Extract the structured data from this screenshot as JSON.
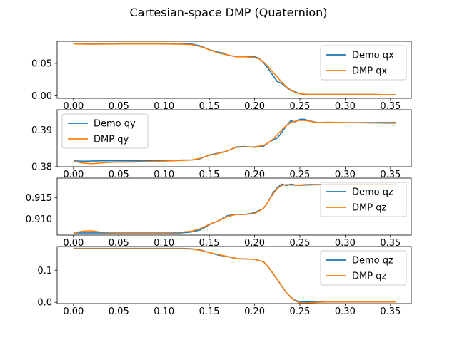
{
  "figure": {
    "title": "Cartesian-space DMP (Quaternion)"
  },
  "colors": {
    "demo": "#1f77b4",
    "dmp": "#ff7f0e"
  },
  "chart_data": [
    {
      "type": "line",
      "xlim": [
        -0.018,
        0.373
      ],
      "ylim": [
        -0.004,
        0.084
      ],
      "xticks": [
        "0.00",
        "0.05",
        "0.10",
        "0.15",
        "0.20",
        "0.25",
        "0.30",
        "0.35"
      ],
      "yticks": [
        {
          "v": 0.0,
          "label": "0.00"
        },
        {
          "v": 0.05,
          "label": "0.05"
        }
      ],
      "legend": "right",
      "series": [
        {
          "name": "Demo qx",
          "color": "demo",
          "x": [
            0,
            0.02,
            0.05,
            0.08,
            0.1,
            0.12,
            0.13,
            0.14,
            0.15,
            0.16,
            0.165,
            0.17,
            0.18,
            0.19,
            0.2,
            0.205,
            0.21,
            0.215,
            0.22,
            0.225,
            0.23,
            0.235,
            0.24,
            0.245,
            0.25,
            0.255,
            0.26,
            0.28,
            0.3,
            0.33,
            0.356
          ],
          "y": [
            0.081,
            0.0805,
            0.081,
            0.081,
            0.081,
            0.0805,
            0.08,
            0.077,
            0.071,
            0.067,
            0.066,
            0.063,
            0.06,
            0.0605,
            0.06,
            0.058,
            0.051,
            0.042,
            0.032,
            0.022,
            0.019,
            0.013,
            0.008,
            0.006,
            0.003,
            0.002,
            0.002,
            0.002,
            0.002,
            0.002,
            0.0015
          ]
        },
        {
          "name": "DMP qx",
          "color": "dmp",
          "x": [
            0,
            0.02,
            0.05,
            0.08,
            0.1,
            0.12,
            0.13,
            0.14,
            0.15,
            0.16,
            0.17,
            0.18,
            0.19,
            0.2,
            0.205,
            0.21,
            0.215,
            0.22,
            0.225,
            0.23,
            0.235,
            0.24,
            0.245,
            0.25,
            0.255,
            0.26,
            0.28,
            0.3,
            0.33,
            0.356
          ],
          "y": [
            0.08,
            0.0795,
            0.08,
            0.08,
            0.08,
            0.0795,
            0.079,
            0.076,
            0.071,
            0.066,
            0.063,
            0.06,
            0.06,
            0.059,
            0.057,
            0.052,
            0.045,
            0.037,
            0.029,
            0.021,
            0.014,
            0.009,
            0.005,
            0.003,
            0.0025,
            0.002,
            0.002,
            0.002,
            0.002,
            0.0015
          ]
        }
      ]
    },
    {
      "type": "line",
      "xlim": [
        -0.018,
        0.373
      ],
      "ylim": [
        0.38,
        0.3955
      ],
      "xticks": [
        "0.00",
        "0.05",
        "0.10",
        "0.15",
        "0.20",
        "0.25",
        "0.30",
        "0.35"
      ],
      "yticks": [
        {
          "v": 0.38,
          "label": "0.38"
        },
        {
          "v": 0.39,
          "label": "0.39"
        }
      ],
      "legend": "left",
      "series": [
        {
          "name": "Demo qy",
          "color": "demo",
          "x": [
            0,
            0.01,
            0.03,
            0.06,
            0.09,
            0.12,
            0.13,
            0.14,
            0.15,
            0.16,
            0.17,
            0.18,
            0.19,
            0.2,
            0.21,
            0.215,
            0.22,
            0.225,
            0.23,
            0.235,
            0.24,
            0.245,
            0.25,
            0.255,
            0.26,
            0.27,
            0.28,
            0.3,
            0.33,
            0.356
          ],
          "y": [
            0.3816,
            0.3815,
            0.3816,
            0.3816,
            0.3816,
            0.3818,
            0.3818,
            0.3822,
            0.3832,
            0.3837,
            0.3843,
            0.3854,
            0.3855,
            0.3853,
            0.3856,
            0.3865,
            0.3872,
            0.3878,
            0.3893,
            0.3911,
            0.3925,
            0.3922,
            0.3929,
            0.3929,
            0.3925,
            0.392,
            0.392,
            0.392,
            0.392,
            0.392
          ]
        },
        {
          "name": "DMP qy",
          "color": "dmp",
          "x": [
            0,
            0.01,
            0.02,
            0.04,
            0.07,
            0.1,
            0.12,
            0.13,
            0.14,
            0.15,
            0.16,
            0.17,
            0.18,
            0.19,
            0.2,
            0.21,
            0.215,
            0.22,
            0.225,
            0.23,
            0.235,
            0.24,
            0.245,
            0.25,
            0.255,
            0.26,
            0.27,
            0.28,
            0.3,
            0.33,
            0.356
          ],
          "y": [
            0.3815,
            0.381,
            0.3808,
            0.3812,
            0.3813,
            0.3815,
            0.3817,
            0.3818,
            0.3823,
            0.3831,
            0.3836,
            0.3843,
            0.3853,
            0.3854,
            0.3854,
            0.3858,
            0.3865,
            0.3874,
            0.3887,
            0.39,
            0.3912,
            0.392,
            0.3924,
            0.3926,
            0.3926,
            0.3924,
            0.392,
            0.3921,
            0.392,
            0.3919,
            0.3918
          ]
        }
      ]
    },
    {
      "type": "line",
      "xlim": [
        -0.018,
        0.373
      ],
      "ylim": [
        0.9063,
        0.9195
      ],
      "xticks": [
        "0.00",
        "0.05",
        "0.10",
        "0.15",
        "0.20",
        "0.25",
        "0.30",
        "0.35"
      ],
      "yticks": [
        {
          "v": 0.91,
          "label": "0.910"
        },
        {
          "v": 0.915,
          "label": "0.915"
        }
      ],
      "legend": "right",
      "series": [
        {
          "name": "Demo qz",
          "color": "demo",
          "x": [
            0,
            0.02,
            0.05,
            0.08,
            0.1,
            0.118,
            0.13,
            0.14,
            0.15,
            0.16,
            0.17,
            0.18,
            0.19,
            0.2,
            0.21,
            0.215,
            0.22,
            0.225,
            0.23,
            0.235,
            0.24,
            0.245,
            0.25,
            0.26,
            0.27,
            0.28,
            0.3,
            0.33,
            0.356
          ],
          "y": [
            0.9068,
            0.9068,
            0.9068,
            0.9068,
            0.9068,
            0.9068,
            0.907,
            0.9075,
            0.9087,
            0.9096,
            0.9108,
            0.9111,
            0.9111,
            0.9115,
            0.9125,
            0.914,
            0.916,
            0.9173,
            0.9181,
            0.9178,
            0.9181,
            0.9179,
            0.9179,
            0.918,
            0.918,
            0.9181,
            0.9181,
            0.9181,
            0.9181
          ]
        },
        {
          "name": "DMP qz",
          "color": "dmp",
          "x": [
            0,
            0.01,
            0.02,
            0.03,
            0.05,
            0.08,
            0.1,
            0.12,
            0.13,
            0.14,
            0.15,
            0.16,
            0.17,
            0.18,
            0.19,
            0.2,
            0.21,
            0.215,
            0.22,
            0.225,
            0.23,
            0.235,
            0.24,
            0.25,
            0.26,
            0.28,
            0.3,
            0.33,
            0.356
          ],
          "y": [
            0.9068,
            0.9072,
            0.9073,
            0.907,
            0.9069,
            0.9069,
            0.9069,
            0.907,
            0.9072,
            0.9078,
            0.9088,
            0.9096,
            0.9106,
            0.9111,
            0.9111,
            0.9113,
            0.9125,
            0.914,
            0.9157,
            0.9171,
            0.9178,
            0.918,
            0.9179,
            0.9178,
            0.9179,
            0.918,
            0.918,
            0.918,
            0.918
          ]
        }
      ]
    },
    {
      "type": "line",
      "xlim": [
        -0.018,
        0.373
      ],
      "ylim": [
        -0.004,
        0.174
      ],
      "xticks": [
        "0.00",
        "0.05",
        "0.10",
        "0.15",
        "0.20",
        "0.25",
        "0.30",
        "0.35"
      ],
      "yticks": [
        {
          "v": 0.0,
          "label": "0.0"
        },
        {
          "v": 0.1,
          "label": "0.1"
        }
      ],
      "legend": "right",
      "series": [
        {
          "name": "Demo qz",
          "color": "demo",
          "x": [
            0,
            0.02,
            0.05,
            0.08,
            0.1,
            0.12,
            0.13,
            0.14,
            0.15,
            0.16,
            0.17,
            0.18,
            0.19,
            0.2,
            0.21,
            0.215,
            0.22,
            0.225,
            0.23,
            0.235,
            0.24,
            0.245,
            0.25,
            0.255,
            0.26,
            0.27,
            0.28,
            0.3,
            0.33,
            0.356
          ],
          "y": [
            0.168,
            0.168,
            0.168,
            0.168,
            0.168,
            0.168,
            0.167,
            0.163,
            0.155,
            0.147,
            0.143,
            0.136,
            0.135,
            0.134,
            0.126,
            0.11,
            0.091,
            0.071,
            0.05,
            0.031,
            0.016,
            0.006,
            0.002,
            0.001,
            0.001,
            0.001,
            0.001,
            0.001,
            0.001,
            0.001
          ]
        },
        {
          "name": "DMP qz",
          "color": "dmp",
          "x": [
            0,
            0.02,
            0.05,
            0.08,
            0.1,
            0.12,
            0.13,
            0.14,
            0.15,
            0.16,
            0.17,
            0.18,
            0.19,
            0.2,
            0.21,
            0.215,
            0.22,
            0.225,
            0.23,
            0.235,
            0.24,
            0.245,
            0.25,
            0.255,
            0.26,
            0.27,
            0.28,
            0.3,
            0.33,
            0.356
          ],
          "y": [
            0.167,
            0.167,
            0.167,
            0.167,
            0.167,
            0.167,
            0.166,
            0.162,
            0.155,
            0.149,
            0.143,
            0.137,
            0.135,
            0.134,
            0.126,
            0.111,
            0.092,
            0.072,
            0.051,
            0.031,
            0.015,
            0.004,
            -0.002,
            -0.003,
            -0.002,
            0.0,
            0.001,
            0.001,
            0.001,
            0.001
          ]
        }
      ]
    }
  ]
}
